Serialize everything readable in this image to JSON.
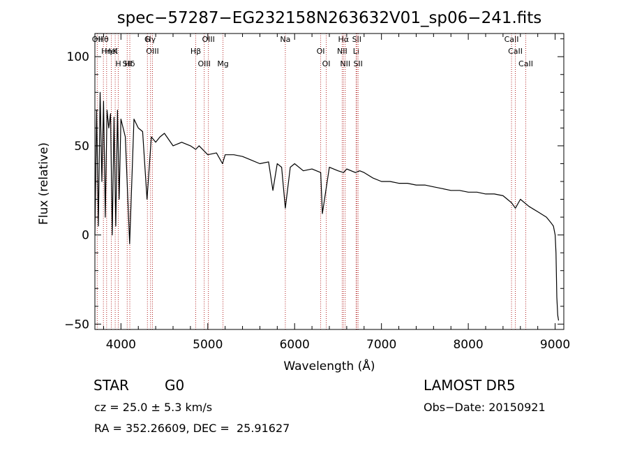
{
  "chart_data": {
    "type": "line",
    "title": "spec−57287−EG232158N263632V01_sp06−241.fits",
    "xlabel": "Wavelength (Å)",
    "ylabel": "Flux (relative)",
    "xlim": [
      3700,
      9100
    ],
    "ylim": [
      -53,
      113
    ],
    "x_ticks": [
      4000,
      5000,
      6000,
      7000,
      8000,
      9000
    ],
    "x_tick_labels": [
      "4000",
      "5000",
      "6000",
      "7000",
      "8000",
      "9000"
    ],
    "y_ticks": [
      -50,
      0,
      50,
      100
    ],
    "y_tick_labels": [
      "−50",
      "0",
      "50",
      "100"
    ],
    "grid": false,
    "line_color": "#000000",
    "marker_color": "#b22222",
    "series": [
      {
        "x": [
          3700,
          3720,
          3740,
          3760,
          3780,
          3800,
          3820,
          3840,
          3860,
          3880,
          3900,
          3920,
          3940,
          3960,
          3980,
          4000,
          4050,
          4100,
          4150,
          4200,
          4250,
          4300,
          4350,
          4400,
          4450,
          4500,
          4600,
          4700,
          4800,
          4861,
          4900,
          5000,
          5100,
          5170,
          5200,
          5300,
          5400,
          5500,
          5600,
          5700,
          5750,
          5800,
          5850,
          5893,
          5950,
          6000,
          6100,
          6200,
          6300,
          6320,
          6400,
          6500,
          6563,
          6600,
          6700,
          6750,
          6800,
          6900,
          7000,
          7100,
          7200,
          7300,
          7400,
          7500,
          7600,
          7700,
          7800,
          7900,
          8000,
          8100,
          8200,
          8300,
          8400,
          8450,
          8500,
          8542,
          8600,
          8700,
          8800,
          8900,
          8950,
          8980,
          9000,
          9010,
          9020,
          9030,
          9040
        ],
        "y": [
          0,
          70,
          5,
          80,
          30,
          75,
          10,
          70,
          60,
          68,
          0,
          66,
          5,
          70,
          20,
          65,
          55,
          -5,
          65,
          60,
          58,
          20,
          55,
          52,
          55,
          57,
          50,
          52,
          50,
          48,
          50,
          45,
          46,
          40,
          45,
          45,
          44,
          42,
          40,
          41,
          25,
          40,
          38,
          15,
          38,
          40,
          36,
          37,
          35,
          12,
          38,
          36,
          35,
          37,
          35,
          36,
          35,
          32,
          30,
          30,
          29,
          29,
          28,
          28,
          27,
          26,
          25,
          25,
          24,
          24,
          23,
          23,
          22,
          20,
          18,
          15,
          20,
          16,
          13,
          10,
          7,
          5,
          0,
          -10,
          -35,
          -45,
          -48
        ]
      }
    ],
    "line_markers": [
      {
        "label": "Hθ",
        "x": 3798
      },
      {
        "label": "K",
        "x": 3934
      },
      {
        "label": "Hδ",
        "x": 4102
      },
      {
        "label": "OII",
        "x": 3727
      },
      {
        "label": "HeI",
        "x": 3889
      },
      {
        "label": "SII",
        "x": 4072
      },
      {
        "label": "Hγ",
        "x": 4341
      },
      {
        "label": "OIII",
        "x": 4363
      },
      {
        "label": "OIII",
        "x": 4959
      },
      {
        "label": "OIII",
        "x": 5007
      },
      {
        "label": "Hη",
        "x": 3835
      },
      {
        "label": "H",
        "x": 3969
      },
      {
        "label": "G",
        "x": 4305
      },
      {
        "label": "Hβ",
        "x": 4861
      },
      {
        "label": "Mg",
        "x": 5175
      },
      {
        "label": "Na",
        "x": 5893
      },
      {
        "label": "OI",
        "x": 6300
      },
      {
        "label": "OI",
        "x": 6364
      },
      {
        "label": "Hα",
        "x": 6563
      },
      {
        "label": "NII",
        "x": 6548
      },
      {
        "label": "NII",
        "x": 6583
      },
      {
        "label": "SII",
        "x": 6716
      },
      {
        "label": "Li",
        "x": 6708
      },
      {
        "label": "SII",
        "x": 6731
      },
      {
        "label": "CaII",
        "x": 8498
      },
      {
        "label": "CaII",
        "x": 8542
      },
      {
        "label": "CaII",
        "x": 8662
      }
    ]
  },
  "footer": {
    "object_class": "STAR",
    "subclass": "G0",
    "redshift": "cz = 25.0 ± 5.3 km/s",
    "coords": "RA = 352.26609, DEC =  25.91627",
    "survey": "LAMOST DR5",
    "obs_date": "Obs−Date: 20150921"
  }
}
